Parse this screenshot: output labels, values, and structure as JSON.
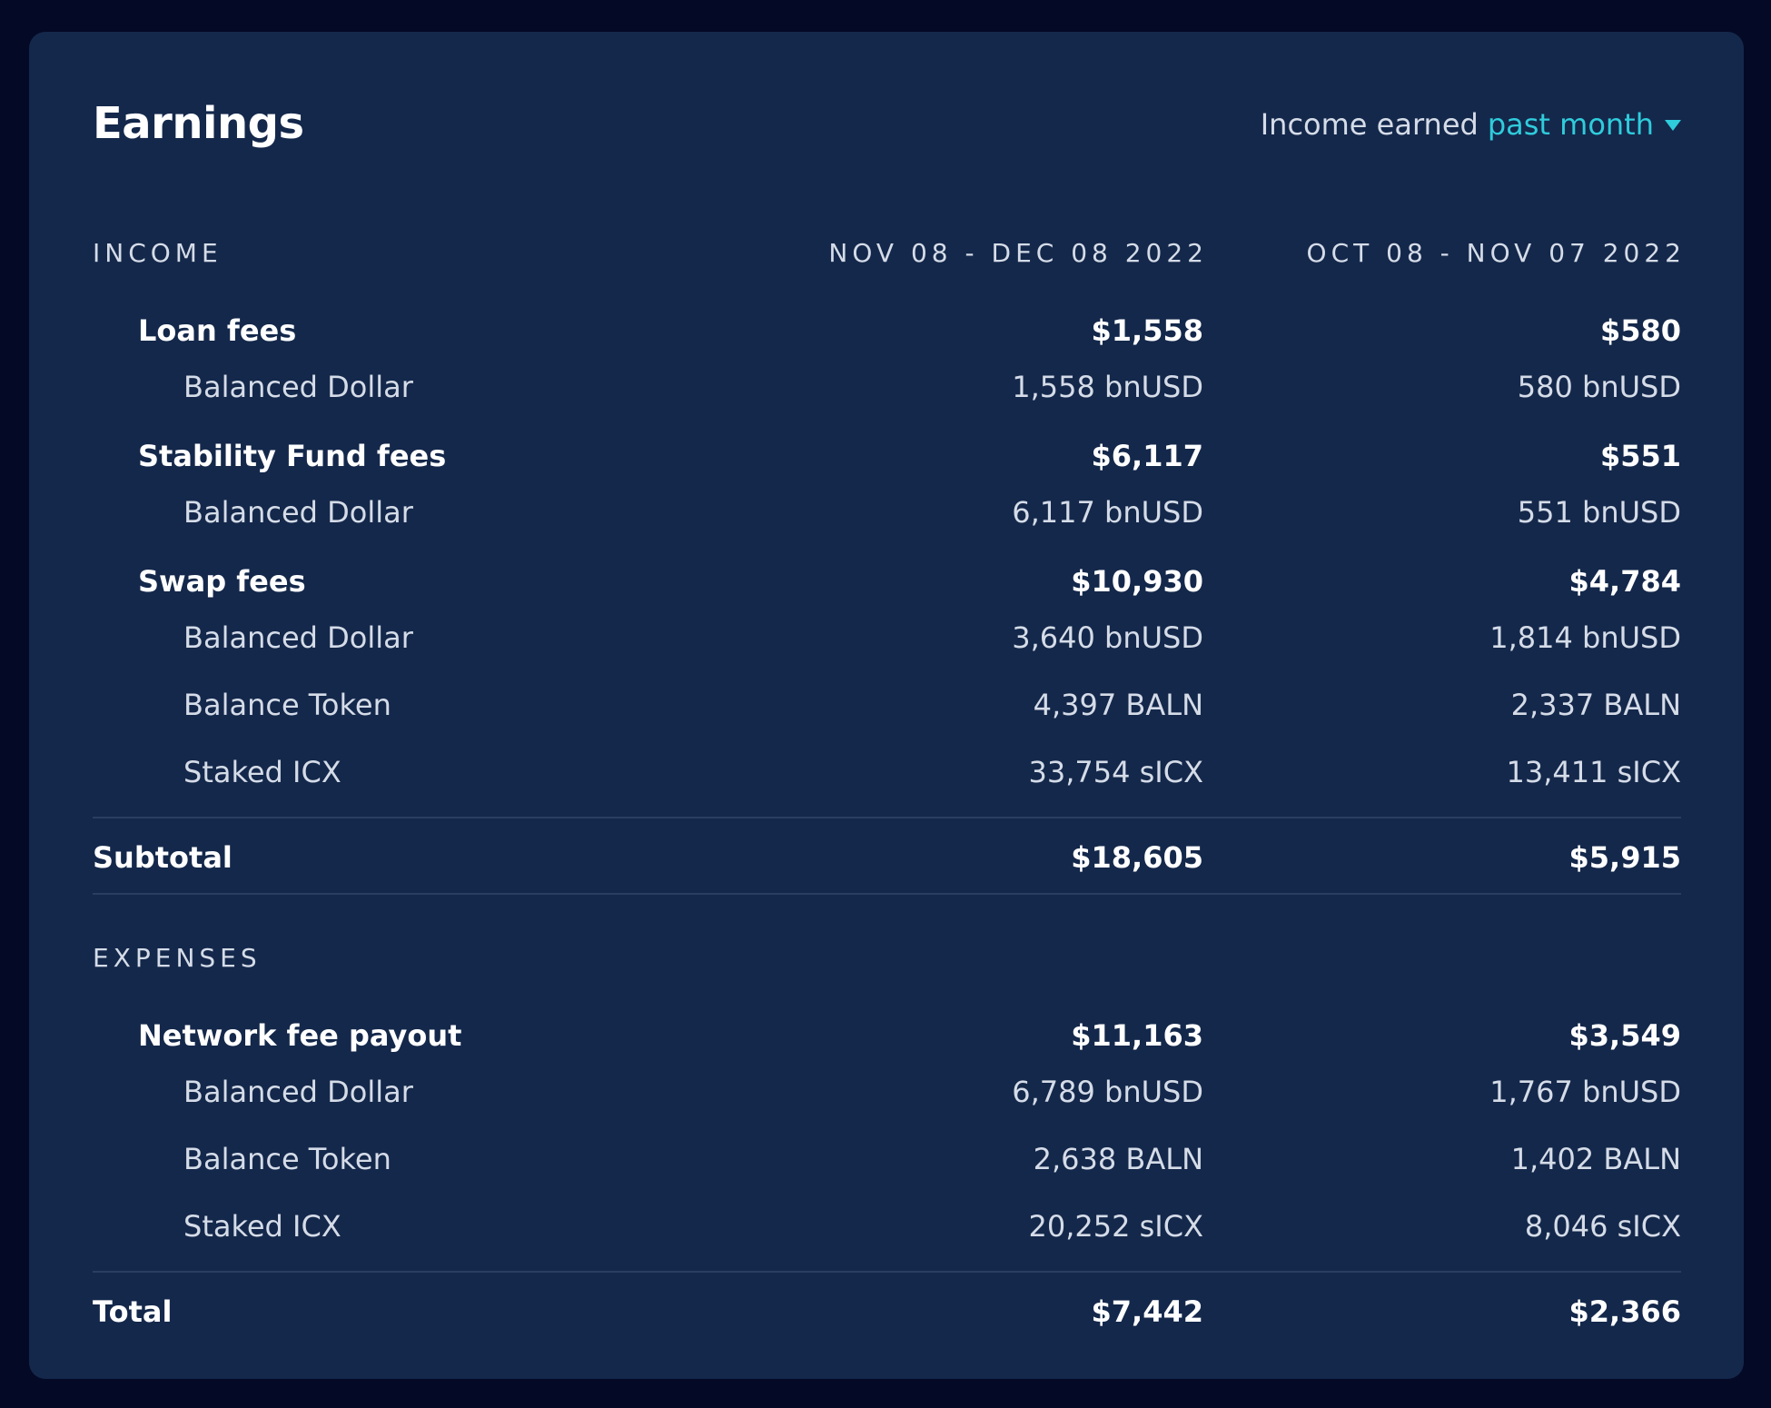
{
  "header": {
    "title": "Earnings",
    "period_prefix": "Income earned",
    "period_value": "past month"
  },
  "income": {
    "heading": "INCOME",
    "period_current": "NOV 08 - DEC 08 2022",
    "period_previous": "OCT 08 - NOV 07 2022",
    "groups": [
      {
        "label": "Loan fees",
        "current": "$1,558",
        "previous": "$580",
        "items": [
          {
            "label": "Balanced Dollar",
            "current": "1,558 bnUSD",
            "previous": "580 bnUSD"
          }
        ]
      },
      {
        "label": "Stability Fund fees",
        "current": "$6,117",
        "previous": "$551",
        "items": [
          {
            "label": "Balanced Dollar",
            "current": "6,117 bnUSD",
            "previous": "551 bnUSD"
          }
        ]
      },
      {
        "label": "Swap fees",
        "current": "$10,930",
        "previous": "$4,784",
        "items": [
          {
            "label": "Balanced Dollar",
            "current": "3,640 bnUSD",
            "previous": "1,814 bnUSD"
          },
          {
            "label": "Balance Token",
            "current": "4,397 BALN",
            "previous": "2,337 BALN"
          },
          {
            "label": "Staked ICX",
            "current": "33,754 sICX",
            "previous": "13,411 sICX"
          }
        ]
      }
    ],
    "subtotal": {
      "label": "Subtotal",
      "current": "$18,605",
      "previous": "$5,915"
    }
  },
  "expenses": {
    "heading": "EXPENSES",
    "groups": [
      {
        "label": "Network fee payout",
        "current": "$11,163",
        "previous": "$3,549",
        "items": [
          {
            "label": "Balanced Dollar",
            "current": "6,789 bnUSD",
            "previous": "1,767 bnUSD"
          },
          {
            "label": "Balance Token",
            "current": "2,638 BALN",
            "previous": "1,402 BALN"
          },
          {
            "label": "Staked ICX",
            "current": "20,252 sICX",
            "previous": "8,046 sICX"
          }
        ]
      }
    ],
    "total": {
      "label": "Total",
      "current": "$7,442",
      "previous": "$2,366"
    }
  },
  "colors": {
    "background": "#040925",
    "card": "#14284b",
    "accent": "#2fccdc",
    "muted_text": "#d5dce8",
    "divider": "#2a3e61"
  }
}
